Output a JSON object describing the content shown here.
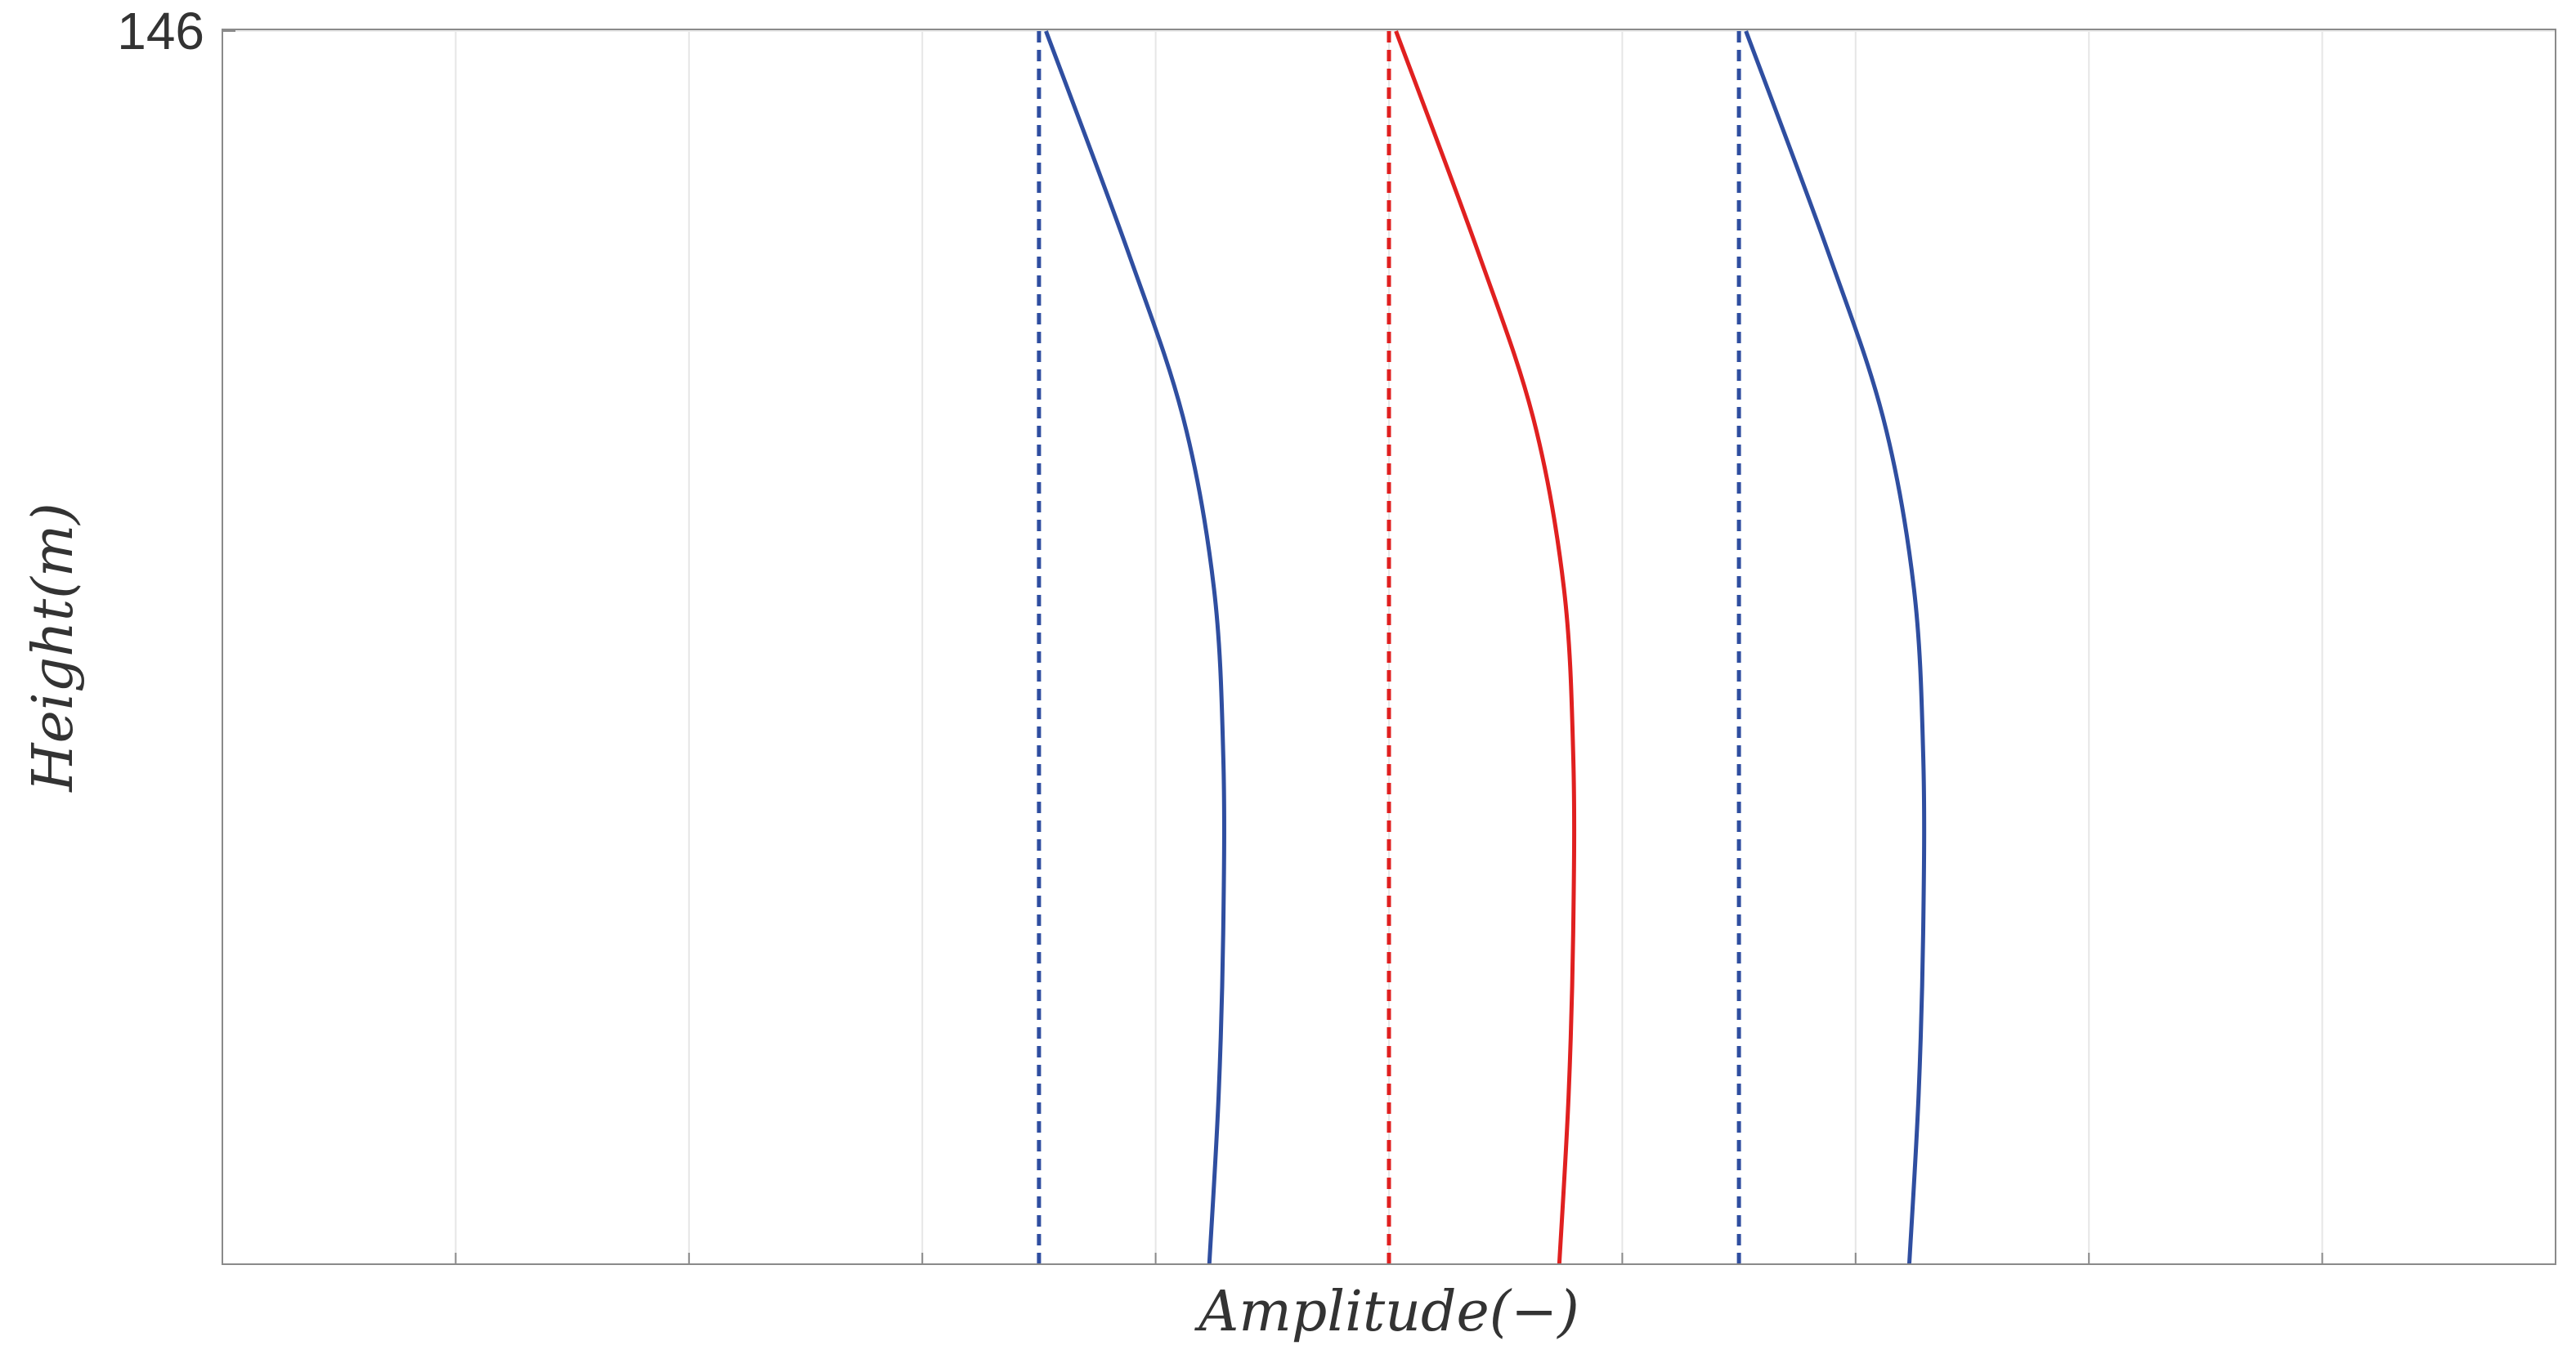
{
  "chart_data": {
    "type": "line",
    "title": "",
    "xlabel": "Amplitude(−)",
    "ylabel": "Height(m)",
    "xlim": [
      0,
      10
    ],
    "ylim": [
      0,
      146
    ],
    "x_gridlines": [
      1,
      2,
      3,
      4,
      5,
      6,
      7,
      8,
      9
    ],
    "y_ticks": [
      146
    ],
    "y_tick_labels": [
      "146"
    ],
    "grid": "vertical",
    "legend": "none",
    "series": [
      {
        "style": "dashed",
        "color": "#2f4ea0",
        "points": [
          [
            3.5,
            0
          ],
          [
            3.5,
            146
          ]
        ]
      },
      {
        "style": "solid",
        "color": "#2f4ea0",
        "points": [
          [
            4.23,
            0
          ],
          [
            4.27,
            20
          ],
          [
            4.29,
            40
          ],
          [
            4.29,
            60
          ],
          [
            4.25,
            80
          ],
          [
            4.12,
            100
          ],
          [
            3.88,
            120
          ],
          [
            3.53,
            146
          ]
        ]
      },
      {
        "style": "dashed",
        "color": "#e02020",
        "points": [
          [
            5.0,
            0
          ],
          [
            5.0,
            146
          ]
        ]
      },
      {
        "style": "solid",
        "color": "#e02020",
        "points": [
          [
            5.73,
            0
          ],
          [
            5.77,
            20
          ],
          [
            5.79,
            40
          ],
          [
            5.79,
            60
          ],
          [
            5.75,
            80
          ],
          [
            5.62,
            100
          ],
          [
            5.38,
            120
          ],
          [
            5.03,
            146
          ]
        ]
      },
      {
        "style": "dashed",
        "color": "#2f4ea0",
        "points": [
          [
            6.5,
            0
          ],
          [
            6.5,
            146
          ]
        ]
      },
      {
        "style": "solid",
        "color": "#2f4ea0",
        "points": [
          [
            7.23,
            0
          ],
          [
            7.27,
            20
          ],
          [
            7.29,
            40
          ],
          [
            7.29,
            60
          ],
          [
            7.25,
            80
          ],
          [
            7.12,
            100
          ],
          [
            6.88,
            120
          ],
          [
            6.53,
            146
          ]
        ]
      }
    ]
  }
}
